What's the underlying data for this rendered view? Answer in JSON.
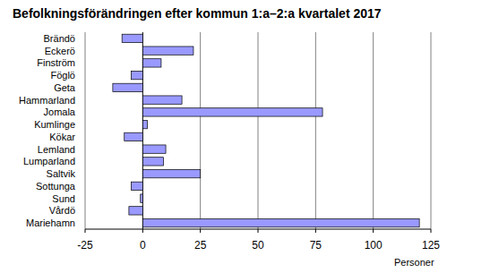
{
  "chart_data": {
    "type": "bar",
    "orientation": "horizontal",
    "title": "Befolkningsförändringen efter kommun 1:a–2:a kvartalet 2017",
    "x_label": "Personer",
    "categories": [
      "Brändö",
      "Eckerö",
      "Finström",
      "Föglö",
      "Geta",
      "Hammarland",
      "Jomala",
      "Kumlinge",
      "Kökar",
      "Lemland",
      "Lumparland",
      "Saltvik",
      "Sottunga",
      "Sund",
      "Vårdö",
      "Mariehamn"
    ],
    "values": [
      -9,
      22,
      8,
      -5,
      -13,
      17,
      78,
      2,
      -8,
      10,
      9,
      25,
      -5,
      -1,
      -6,
      120
    ],
    "color": "#9999ff",
    "ylim": [
      -25,
      125
    ],
    "yticks": [
      -25,
      0,
      25,
      50,
      75,
      100,
      125
    ],
    "grid": true
  }
}
